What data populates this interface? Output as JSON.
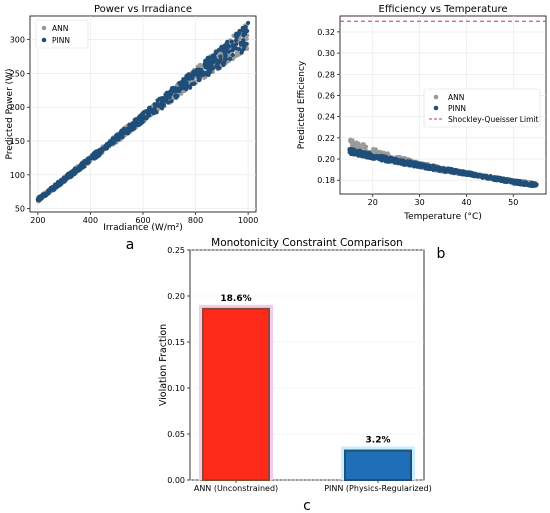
{
  "panel_labels": {
    "a": "a",
    "b": "b",
    "c": "c"
  },
  "colors": {
    "pinn": "#1f4e79",
    "ann": "#9a9a9a",
    "limit": "#e03030",
    "ann_bar": "#ff2a1a",
    "ann_bar_edge": "#8a4a30",
    "ann_bar_halo": "#f6c9ef",
    "pinn_bar": "#1f6fb8",
    "pinn_bar_halo": "#c7f0ff",
    "grid": "#e6e6e6"
  },
  "chart_data": [
    {
      "id": "a",
      "type": "scatter",
      "title": "Power vs Irradiance",
      "xlabel": "Irradiance (W/m²)",
      "ylabel": "Predicted Power (W)",
      "xlim": [
        170,
        1030
      ],
      "ylim": [
        45,
        335
      ],
      "xticks": [
        200,
        400,
        600,
        800,
        1000
      ],
      "yticks": [
        50,
        100,
        150,
        200,
        250,
        300
      ],
      "legend": {
        "position": "upper-left",
        "entries": [
          "ANN",
          "PINN"
        ]
      },
      "grid": true,
      "series": [
        {
          "name": "ANN",
          "marker": "circle",
          "color_key": "ann",
          "x": [
            200,
            300,
            400,
            500,
            600,
            700,
            800,
            900,
            1000
          ],
          "y_low": [
            60,
            89,
            119,
            148,
            178,
            206,
            235,
            260,
            286
          ],
          "y_high": [
            66,
            97,
            128,
            160,
            192,
            225,
            258,
            291,
            325
          ]
        },
        {
          "name": "PINN",
          "marker": "circle",
          "color_key": "pinn",
          "x": [
            200,
            300,
            400,
            500,
            600,
            700,
            800,
            900,
            1000
          ],
          "y_low": [
            60,
            89,
            119,
            148,
            178,
            206,
            235,
            260,
            286
          ],
          "y_high": [
            66,
            97,
            128,
            160,
            192,
            225,
            258,
            291,
            325
          ]
        }
      ]
    },
    {
      "id": "b",
      "type": "scatter",
      "title": "Efficiency vs Temperature",
      "xlabel": "Temperature (°C)",
      "ylabel": "Predicted Efficiency",
      "xlim": [
        13,
        57
      ],
      "ylim": [
        0.167,
        0.335
      ],
      "xticks": [
        20,
        30,
        40,
        50
      ],
      "yticks": [
        0.18,
        0.2,
        0.22,
        0.24,
        0.26,
        0.28,
        0.3,
        0.32
      ],
      "legend": {
        "position": "center-right",
        "entries": [
          "ANN",
          "PINN",
          "Shockley-Queisser Limit"
        ]
      },
      "grid": true,
      "reference_line": {
        "name": "Shockley-Queisser Limit",
        "y": 0.33,
        "style": "dashed"
      },
      "series": [
        {
          "name": "ANN",
          "marker": "circle",
          "color_key": "ann",
          "x": [
            15,
            20,
            25,
            30,
            35,
            40,
            45,
            50,
            55
          ],
          "y_low": [
            0.205,
            0.2,
            0.196,
            0.192,
            0.188,
            0.185,
            0.181,
            0.177,
            0.174
          ],
          "y_high": [
            0.22,
            0.21,
            0.203,
            0.197,
            0.192,
            0.188,
            0.184,
            0.18,
            0.178
          ]
        },
        {
          "name": "PINN",
          "marker": "circle",
          "color_key": "pinn",
          "x": [
            15,
            20,
            25,
            30,
            35,
            40,
            45,
            50,
            55
          ],
          "y_low": [
            0.205,
            0.2,
            0.196,
            0.192,
            0.188,
            0.185,
            0.181,
            0.177,
            0.174
          ],
          "y_high": [
            0.21,
            0.205,
            0.2,
            0.196,
            0.192,
            0.188,
            0.184,
            0.18,
            0.177
          ]
        }
      ]
    },
    {
      "id": "c",
      "type": "bar",
      "title": "Monotonicity Constraint Comparison",
      "xlabel": "",
      "ylabel": "Violation Fraction",
      "categories": [
        "ANN (Unconstrained)",
        "PINN (Physics-Regularized)"
      ],
      "values": [
        0.186,
        0.032
      ],
      "data_labels": [
        "18.6%",
        "3.2%"
      ],
      "ylim": [
        0,
        0.25
      ],
      "yticks": [
        0.0,
        0.05,
        0.1,
        0.15,
        0.2,
        0.25
      ],
      "grid": true
    }
  ]
}
